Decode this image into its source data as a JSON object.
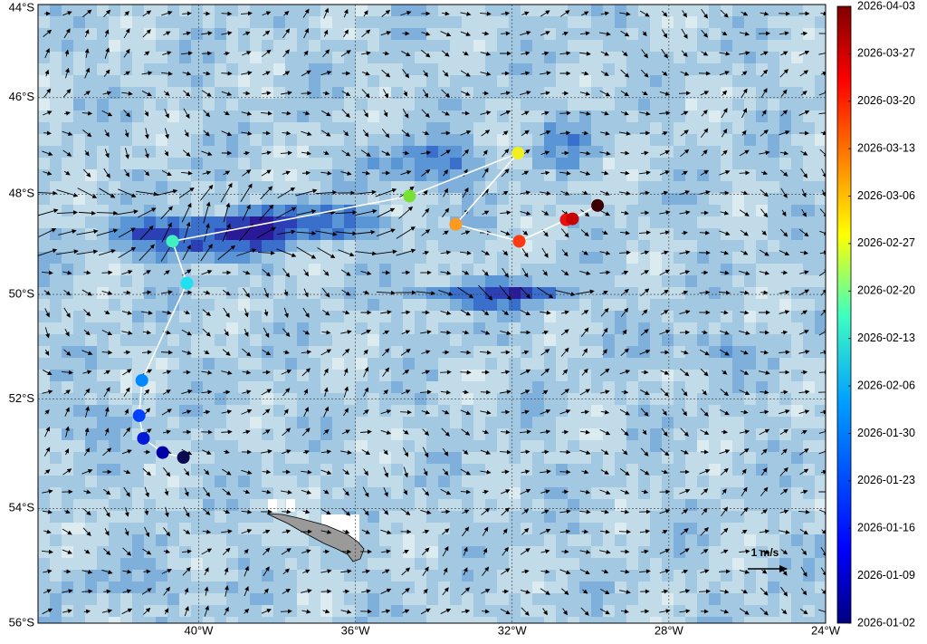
{
  "chart_data": {
    "type": "scatter",
    "x": [
      -40.39,
      -40.92,
      -41.41,
      -41.52,
      -41.45,
      -40.3,
      -40.67,
      -34.62,
      -31.85,
      -33.44,
      -31.82,
      -30.62,
      -30.46,
      -29.82
    ],
    "values": [
      -53.08,
      -52.99,
      -52.73,
      -52.31,
      -51.65,
      -49.78,
      -48.95,
      -48.04,
      -47.16,
      -48.61,
      -48.95,
      -48.52,
      -48.5,
      -48.23
    ],
    "colors": [
      "#0a0a50",
      "#0000a8",
      "#0018d8",
      "#0040ff",
      "#0088ff",
      "#20e0f0",
      "#40f0c0",
      "#78e030",
      "#f0f020",
      "#ff9a20",
      "#ff3a10",
      "#e81010",
      "#c80000",
      "#3c0000"
    ],
    "line_color": "#ffffff",
    "xlim": [
      -44.1,
      -24
    ],
    "ylim": [
      -56,
      -44
    ],
    "xticks": [
      {
        "value": -40,
        "label": "40°W"
      },
      {
        "value": -36,
        "label": "36°W"
      },
      {
        "value": -32,
        "label": "32°W"
      },
      {
        "value": -28,
        "label": "28°W"
      },
      {
        "value": -24,
        "label": "24°W"
      }
    ],
    "yticks": [
      {
        "value": -44,
        "label": "44°S"
      },
      {
        "value": -46,
        "label": "46°S"
      },
      {
        "value": -48,
        "label": "48°S"
      },
      {
        "value": -50,
        "label": "50°S"
      },
      {
        "value": -52,
        "label": "52°S"
      },
      {
        "value": -54,
        "label": "54°S"
      },
      {
        "value": -56,
        "label": "56°S"
      }
    ],
    "grid": true,
    "projection": "mercator",
    "colorbar_ticks": [
      "2026-01-02",
      "2026-01-09",
      "2026-01-16",
      "2026-01-23",
      "2026-01-30",
      "2026-02-06",
      "2026-02-13",
      "2026-02-20",
      "2026-02-27",
      "2026-03-06",
      "2026-03-13",
      "2026-03-20",
      "2026-03-27",
      "2026-04-03"
    ],
    "scale_label": "1 m/s"
  }
}
